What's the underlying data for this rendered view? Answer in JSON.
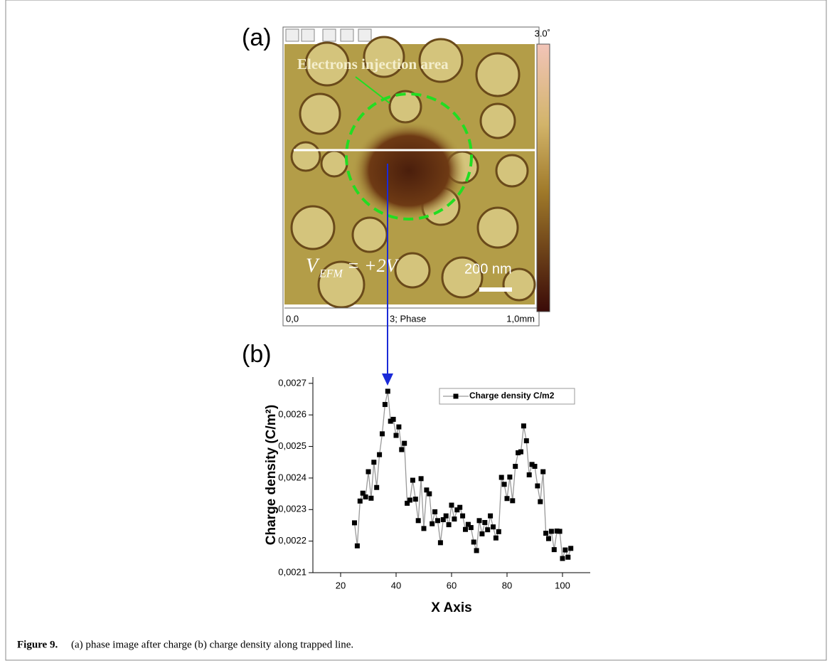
{
  "figure": {
    "panel_a": {
      "label": "(a)",
      "annotation": "Electrons injection area",
      "voltage": {
        "symbol": "V",
        "subscript": "EFM",
        "rest": "= +2V"
      },
      "scale_bar": "200 nm",
      "colorbar_max": "3.0˚",
      "axis_start": "0,0",
      "channel": "3; Phase",
      "axis_end": "1,0mm"
    },
    "panel_b_label": "(b)",
    "caption": {
      "label": "Figure 9.",
      "text": "(a) phase image after charge (b) charge density along trapped line."
    }
  },
  "chart_data": {
    "type": "line",
    "x_label": "X Axis",
    "y_label": "Charge density (C/m²)",
    "x": [
      25,
      26,
      27,
      28,
      29,
      30,
      31,
      32,
      33,
      34,
      35,
      36,
      37,
      38,
      39,
      40,
      41,
      42,
      43,
      44,
      45,
      46,
      47,
      48,
      49,
      50,
      51,
      52,
      53,
      54,
      55,
      56,
      57,
      58,
      59,
      60,
      61,
      62,
      63,
      64,
      65,
      66,
      67,
      68,
      69,
      70,
      71,
      72,
      73,
      74,
      75,
      76,
      77,
      78,
      79,
      80,
      81,
      82,
      83,
      84,
      85,
      86,
      87,
      88,
      89,
      90,
      91,
      92,
      93,
      94,
      95,
      96,
      97,
      98,
      99,
      100,
      101,
      102,
      103
    ],
    "series": [
      {
        "name": "Charge density C/m2",
        "color": "#000000",
        "line_color": "#999999",
        "marker": "square",
        "values": [
          0.002258,
          0.002185,
          0.002327,
          0.002352,
          0.00234,
          0.00242,
          0.002336,
          0.00245,
          0.00237,
          0.002474,
          0.00254,
          0.002633,
          0.002675,
          0.00258,
          0.002586,
          0.002535,
          0.002562,
          0.00249,
          0.00251,
          0.00232,
          0.00233,
          0.002393,
          0.002333,
          0.002265,
          0.002398,
          0.00224,
          0.002362,
          0.00235,
          0.002255,
          0.002293,
          0.002265,
          0.002195,
          0.002268,
          0.00228,
          0.002252,
          0.002314,
          0.00227,
          0.002299,
          0.002307,
          0.00228,
          0.002237,
          0.002253,
          0.002243,
          0.002197,
          0.00217,
          0.002265,
          0.002223,
          0.002259,
          0.002236,
          0.00228,
          0.002245,
          0.00221,
          0.00223,
          0.002402,
          0.00238,
          0.002335,
          0.002403,
          0.002328,
          0.002437,
          0.00248,
          0.002483,
          0.002565,
          0.002518,
          0.00241,
          0.002443,
          0.002437,
          0.002375,
          0.002325,
          0.00242,
          0.002225,
          0.002208,
          0.002231,
          0.002173,
          0.002232,
          0.002231,
          0.002145,
          0.002172,
          0.002149,
          0.002177
        ]
      }
    ],
    "xlim": [
      10,
      110
    ],
    "xticks": [
      20,
      40,
      60,
      80,
      100
    ],
    "ylim": [
      0.0021,
      0.00272
    ],
    "yticks": [
      {
        "value": 0.0021,
        "label": "0,0021"
      },
      {
        "value": 0.0022,
        "label": "0,0022"
      },
      {
        "value": 0.0023,
        "label": "0,0023"
      },
      {
        "value": 0.0024,
        "label": "0,0024"
      },
      {
        "value": 0.0025,
        "label": "0,0025"
      },
      {
        "value": 0.0026,
        "label": "0,0026"
      },
      {
        "value": 0.0027,
        "label": "0,0027"
      }
    ],
    "legend": "upper right"
  }
}
